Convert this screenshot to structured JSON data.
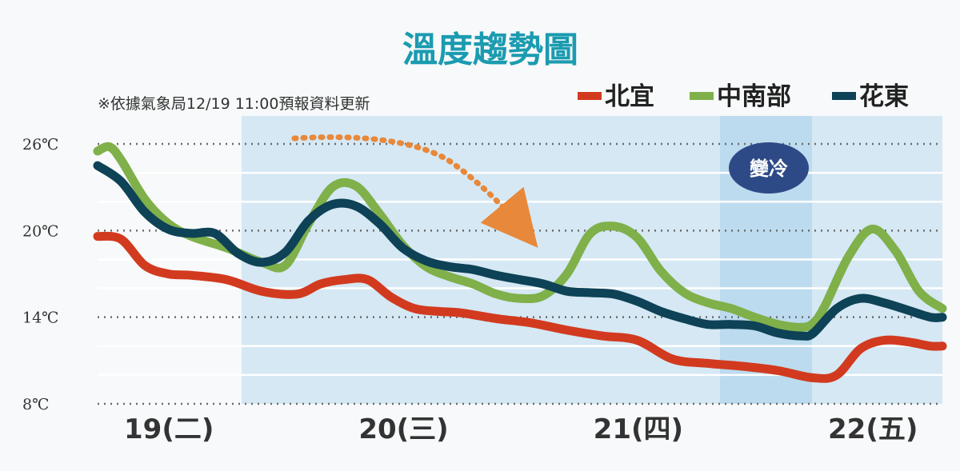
{
  "chart_data": {
    "type": "line",
    "title": "溫度趨勢圖",
    "note": "※依據氣象局12/19 11:00預報資料更新",
    "y_ticks": [
      "26℃",
      "20℃",
      "14℃",
      "8℃"
    ],
    "y_tick_values": [
      26,
      20,
      14,
      8
    ],
    "ylim": [
      8,
      26
    ],
    "x_day_labels": [
      "19(二)",
      "20(三)",
      "21(四)",
      "22(五)"
    ],
    "x_day_positions": [
      0.3,
      1.3,
      2.3,
      3.3
    ],
    "xlim": [
      0,
      3.6
    ],
    "grid": true,
    "legend_position": "top-right",
    "annotation": "變冷",
    "colors": {
      "north_yilan": "#d23a1f",
      "central_south": "#7fb04a",
      "hualien_taitung": "#0e4256",
      "title": "#1b9bb0",
      "shade": "#d5e8f4",
      "arrow": "#e8883a",
      "annotation_bg": "#2d4a86"
    },
    "series": [
      {
        "name": "北宜",
        "color": "#d23a1f",
        "x": [
          0.0,
          0.1,
          0.2,
          0.3,
          0.4,
          0.55,
          0.7,
          0.85,
          0.95,
          1.05,
          1.15,
          1.25,
          1.35,
          1.45,
          1.55,
          1.7,
          1.85,
          2.0,
          2.15,
          2.3,
          2.45,
          2.6,
          2.75,
          2.9,
          3.05,
          3.15,
          3.25,
          3.35,
          3.45,
          3.55,
          3.6
        ],
        "values": [
          19.6,
          19.4,
          17.6,
          17.0,
          16.9,
          16.6,
          15.8,
          15.6,
          16.3,
          16.6,
          16.6,
          15.4,
          14.6,
          14.4,
          14.3,
          13.9,
          13.6,
          13.1,
          12.7,
          12.4,
          11.1,
          10.8,
          10.6,
          10.3,
          9.8,
          10.0,
          11.8,
          12.4,
          12.3,
          12.0,
          12.0
        ]
      },
      {
        "name": "中南部",
        "color": "#7fb04a",
        "x": [
          0.0,
          0.05,
          0.1,
          0.2,
          0.3,
          0.4,
          0.55,
          0.7,
          0.8,
          0.9,
          1.0,
          1.1,
          1.2,
          1.3,
          1.4,
          1.5,
          1.6,
          1.7,
          1.8,
          1.9,
          2.0,
          2.1,
          2.2,
          2.3,
          2.4,
          2.5,
          2.6,
          2.7,
          2.8,
          2.9,
          3.0,
          3.05,
          3.1,
          3.2,
          3.3,
          3.4,
          3.5,
          3.6
        ],
        "values": [
          25.5,
          25.8,
          24.9,
          22.2,
          20.5,
          19.6,
          18.8,
          17.8,
          17.6,
          20.5,
          23.0,
          23.1,
          21.2,
          19.0,
          17.5,
          16.8,
          16.3,
          15.6,
          15.3,
          15.5,
          17.0,
          19.8,
          20.3,
          19.5,
          17.2,
          15.7,
          15.0,
          14.6,
          14.0,
          13.5,
          13.3,
          13.6,
          14.8,
          18.2,
          20.1,
          18.6,
          15.8,
          14.6
        ]
      },
      {
        "name": "花東",
        "color": "#0e4256",
        "x": [
          0.0,
          0.1,
          0.2,
          0.3,
          0.4,
          0.5,
          0.6,
          0.7,
          0.8,
          0.9,
          1.0,
          1.1,
          1.2,
          1.3,
          1.4,
          1.5,
          1.6,
          1.7,
          1.8,
          1.9,
          2.0,
          2.1,
          2.2,
          2.3,
          2.4,
          2.5,
          2.6,
          2.7,
          2.8,
          2.9,
          3.0,
          3.05,
          3.15,
          3.25,
          3.35,
          3.45,
          3.55,
          3.6
        ],
        "values": [
          24.5,
          23.4,
          21.3,
          20.1,
          19.8,
          19.8,
          18.4,
          17.8,
          18.5,
          20.7,
          21.8,
          21.7,
          20.5,
          18.8,
          17.9,
          17.5,
          17.3,
          16.9,
          16.6,
          16.3,
          15.8,
          15.7,
          15.6,
          15.1,
          14.4,
          13.9,
          13.5,
          13.5,
          13.4,
          12.9,
          12.7,
          12.9,
          14.6,
          15.3,
          15.0,
          14.5,
          14.0,
          14.0
        ]
      }
    ]
  }
}
